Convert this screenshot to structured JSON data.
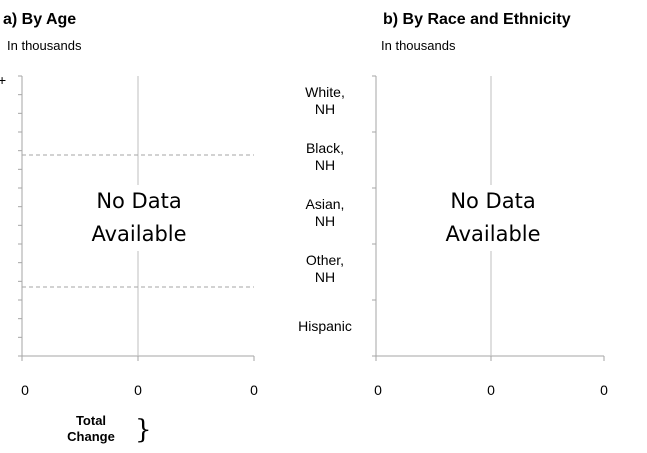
{
  "panel_a": {
    "title": "a) By Age",
    "subtitle": "In thousands",
    "axis_edge_label": "+",
    "x_ticks": [
      "0",
      "0",
      "0"
    ],
    "no_data": "No Data\nAvailable"
  },
  "panel_b": {
    "title": "b) By Race and Ethnicity",
    "subtitle": "In thousands",
    "categories": [
      "White,\nNH",
      "Black,\nNH",
      "Asian,\nNH",
      "Other,\nNH",
      "Hispanic"
    ],
    "x_ticks": [
      "0",
      "0",
      "0"
    ],
    "no_data": "No Data\nAvailable"
  },
  "legend": {
    "label": "Total\nChange",
    "brace": "}"
  },
  "colors": {
    "axis": "#a6a6a6",
    "reference_line": "#a6a6a6"
  },
  "chart_data": [
    {
      "type": "bar",
      "title": "a) By Age",
      "subtitle": "In thousands",
      "categories": [],
      "x_tick_labels": [
        "0",
        "0",
        "0"
      ],
      "series": [],
      "annotation": "No Data Available"
    },
    {
      "type": "bar",
      "title": "b) By Race and Ethnicity",
      "subtitle": "In thousands",
      "categories": [
        "White, NH",
        "Black, NH",
        "Asian, NH",
        "Other, NH",
        "Hispanic"
      ],
      "x_tick_labels": [
        "0",
        "0",
        "0"
      ],
      "series": [],
      "annotation": "No Data Available"
    }
  ]
}
